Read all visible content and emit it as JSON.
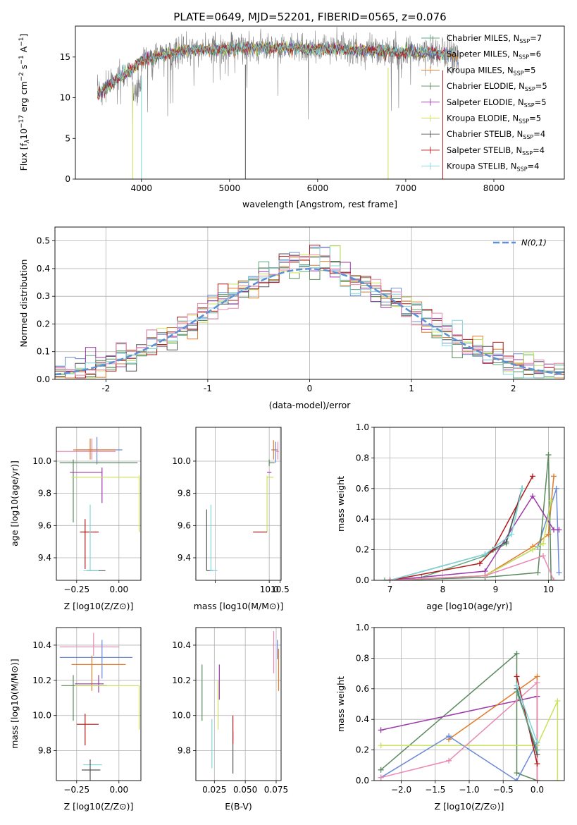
{
  "colors": {
    "Chabrier MILES": "#5fa87f",
    "Salpeter MILES": "#6b8ad6",
    "Kroupa MILES": "#e07b2a",
    "Chabrier ELODIE": "#5a8a5e",
    "Salpeter ELODIE": "#9c3aaa",
    "Kroupa ELODIE": "#c8e35a",
    "Chabrier STELIB": "#555555",
    "Salpeter STELIB": "#b01a1a",
    "Kroupa STELIB": "#7fd6dc",
    "pink": "#e889b4",
    "spectrum_gray": "#808080",
    "gauss": "#5b8fd6"
  },
  "chart_data": [
    {
      "id": "spectrum",
      "type": "line",
      "title": "PLATE=0649, MJD=52201, FIBERID=0565, z=0.076",
      "xlabel": "wavelength [Angstrom, rest frame]",
      "ylabel_parts": [
        "Flux [f",
        "λ",
        "10",
        "−17",
        " erg cm",
        "−2",
        " s",
        "−1",
        " A",
        "−1",
        "]"
      ],
      "xlim": [
        3250,
        8800
      ],
      "ylim": [
        0,
        18.8
      ],
      "xticks": [
        4000,
        5000,
        6000,
        7000,
        8000
      ],
      "yticks": [
        0,
        5,
        10,
        15
      ],
      "grid": false,
      "legend_position": "top-right",
      "legend": [
        {
          "name": "Chabrier MILES",
          "n": "7"
        },
        {
          "name": "Salpeter MILES",
          "n": "6"
        },
        {
          "name": "Kroupa MILES",
          "n": "5"
        },
        {
          "name": "Chabrier ELODIE",
          "n": "5"
        },
        {
          "name": "Salpeter ELODIE",
          "n": "5"
        },
        {
          "name": "Kroupa ELODIE",
          "n": "5"
        },
        {
          "name": "Chabrier STELIB",
          "n": "4"
        },
        {
          "name": "Salpeter STELIB",
          "n": "4"
        },
        {
          "name": "Kroupa STELIB",
          "n": "4"
        }
      ],
      "legend_sub": "SSP",
      "continuum": [
        [
          3500,
          10.5
        ],
        [
          3650,
          11.5
        ],
        [
          3750,
          12.5
        ],
        [
          3900,
          13.5
        ],
        [
          4000,
          14.5
        ],
        [
          4200,
          15.2
        ],
        [
          4500,
          15.8
        ],
        [
          5000,
          16.0
        ],
        [
          5500,
          16.2
        ],
        [
          6000,
          16.0
        ],
        [
          6500,
          15.8
        ],
        [
          7000,
          15.6
        ],
        [
          7400,
          15.4
        ],
        [
          7600,
          15.0
        ]
      ]
    },
    {
      "id": "residuals",
      "type": "bar",
      "xlabel": "(data-model)/error",
      "ylabel": "Normed distribution",
      "xlim": [
        -2.5,
        2.5
      ],
      "ylim": [
        0,
        0.55
      ],
      "xticks": [
        -2,
        -1,
        0,
        1,
        2
      ],
      "yticks": [
        0.0,
        0.1,
        0.2,
        0.3,
        0.4,
        0.5
      ],
      "grid": true,
      "legend_position": "top-right",
      "gauss_label": "N(0,1)",
      "bin_width": 0.1,
      "bin_start": -2.5
    },
    {
      "id": "age-vs-Z",
      "type": "scatter",
      "xlabel": "Z [log10(Z/Z⊙)]",
      "ylabel": "age  [log10(age/yr)]",
      "xlim": [
        -0.37,
        0.13
      ],
      "ylim": [
        9.26,
        10.21
      ],
      "xticks": [
        -0.25,
        0.0
      ],
      "xticklabels": [
        "−0.25",
        "0.00"
      ],
      "yticks": [
        9.4,
        9.6,
        9.8,
        10.0
      ],
      "grid": true,
      "points": [
        {
          "c": "Salpeter MILES",
          "x": -0.13,
          "y": 10.07,
          "xerr": [
            0.12,
            0.15
          ],
          "yerr": [
            0.09,
            0.08
          ]
        },
        {
          "c": "pink",
          "x": -0.16,
          "y": 10.06,
          "xerr": [
            0.21,
            0.14
          ],
          "yerr": [
            0.05,
            0.08
          ]
        },
        {
          "c": "Kroupa MILES",
          "x": -0.17,
          "y": 10.07,
          "xerr": [
            0.1,
            0.15
          ],
          "yerr": [
            0.06,
            0.07
          ]
        },
        {
          "c": "Chabrier ELODIE",
          "x": -0.27,
          "y": 9.99,
          "xerr": [
            0.08,
            0.38
          ],
          "yerr": [
            0.37,
            0.02
          ]
        },
        {
          "c": "Salpeter ELODIE",
          "x": -0.1,
          "y": 9.93,
          "xerr": [
            0.19,
            0.0
          ],
          "yerr": [
            0.19,
            0.03
          ]
        },
        {
          "c": "Kroupa ELODIE",
          "x": 0.12,
          "y": 9.9,
          "xerr": [
            0.4,
            0.0
          ],
          "yerr": [
            0.34,
            0.01
          ]
        },
        {
          "c": "Salpeter STELIB",
          "x": -0.2,
          "y": 9.56,
          "xerr": [
            0.03,
            0.08
          ],
          "yerr": [
            0.23,
            0.08
          ]
        },
        {
          "c": "Chabrier STELIB",
          "x": -0.15,
          "y": 9.32,
          "xerr": [
            0.04,
            0.07
          ],
          "yerr": [
            0.0,
            0.0
          ]
        },
        {
          "c": "Kroupa STELIB",
          "x": -0.17,
          "y": 9.32,
          "xerr": [
            0.04,
            0.05
          ],
          "yerr": [
            0.0,
            0.41
          ]
        }
      ]
    },
    {
      "id": "age-vs-mass",
      "type": "scatter",
      "xlabel": "mass [log10(M/M⊙)]",
      "xlim": [
        6.6,
        10.55
      ],
      "ylim": [
        9.26,
        10.21
      ],
      "xticks": [
        7.5,
        10.0,
        10.5
      ],
      "xticklabels": [
        "",
        "10.0",
        "10.5"
      ],
      "yticks": [
        9.4,
        9.6,
        9.8,
        10.0
      ],
      "grid": true,
      "points": [
        {
          "c": "Salpeter MILES",
          "x": 10.3,
          "y": 10.07,
          "xerr": [
            0.2,
            0.1
          ],
          "yerr": [
            0.08,
            0.05
          ]
        },
        {
          "c": "pink",
          "x": 10.4,
          "y": 10.06,
          "xerr": [
            0.1,
            0.05
          ],
          "yerr": [
            0.05,
            0.06
          ]
        },
        {
          "c": "Kroupa MILES",
          "x": 10.2,
          "y": 10.07,
          "xerr": [
            0.05,
            0.1
          ],
          "yerr": [
            0.06,
            0.06
          ]
        },
        {
          "c": "Chabrier ELODIE",
          "x": 10.0,
          "y": 9.99,
          "xerr": [
            0.0,
            0.25
          ],
          "yerr": [
            0.02,
            0.02
          ]
        },
        {
          "c": "Salpeter ELODIE",
          "x": 10.1,
          "y": 9.93,
          "xerr": [
            0.2,
            0.0
          ],
          "yerr": [
            0.0,
            0.0
          ]
        },
        {
          "c": "Kroupa ELODIE",
          "x": 9.9,
          "y": 9.9,
          "xerr": [
            0.0,
            0.3
          ],
          "yerr": [
            0.34,
            0.01
          ]
        },
        {
          "c": "Salpeter STELIB",
          "x": 9.6,
          "y": 9.56,
          "xerr": [
            0.35,
            0.3
          ],
          "yerr": [
            0.0,
            0.0
          ]
        },
        {
          "c": "Chabrier STELIB",
          "x": 7.1,
          "y": 9.32,
          "xerr": [
            0.0,
            0.3
          ],
          "yerr": [
            0.0,
            0.38
          ]
        },
        {
          "c": "Kroupa STELIB",
          "x": 7.3,
          "y": 9.32,
          "xerr": [
            0.05,
            0.3
          ],
          "yerr": [
            0.0,
            0.41
          ]
        }
      ]
    },
    {
      "id": "weight-vs-age",
      "type": "line",
      "xlabel": "age  [log10(age/yr)]",
      "ylabel": "mass weight",
      "xlim": [
        6.7,
        10.3
      ],
      "ylim": [
        0,
        1
      ],
      "xticks": [
        7,
        8,
        9,
        10
      ],
      "yticks": [
        0.0,
        0.2,
        0.4,
        0.6,
        0.8,
        1.0
      ],
      "grid": true,
      "series": [
        {
          "c": "Chabrier MILES",
          "x": [
            6.9,
            7.6,
            8.8,
            9.2,
            9.5
          ],
          "y": [
            0.0,
            0.02,
            0.16,
            0.24,
            0.6
          ]
        },
        {
          "c": "Salpeter MILES",
          "x": [
            7.0,
            8.8,
            9.8,
            10.15,
            10.2
          ],
          "y": [
            0.0,
            0.03,
            0.22,
            0.6,
            0.05
          ]
        },
        {
          "c": "Kroupa MILES",
          "x": [
            7.0,
            8.8,
            9.7,
            10.0,
            10.1
          ],
          "y": [
            0.0,
            0.03,
            0.22,
            0.3,
            0.68
          ]
        },
        {
          "c": "Chabrier ELODIE",
          "x": [
            7.0,
            8.8,
            9.8,
            10.0,
            10.05
          ],
          "y": [
            0.0,
            0.02,
            0.05,
            0.82,
            0.0
          ]
        },
        {
          "c": "Salpeter ELODIE",
          "x": [
            7.0,
            8.8,
            9.7,
            10.1,
            10.2
          ],
          "y": [
            0.0,
            0.06,
            0.55,
            0.33,
            0.33
          ]
        },
        {
          "c": "Kroupa ELODIE",
          "x": [
            7.0,
            8.8,
            9.7,
            9.9,
            10.05
          ],
          "y": [
            0.0,
            0.03,
            0.2,
            0.24,
            0.52
          ]
        },
        {
          "c": "Chabrier STELIB",
          "x": [
            7.0,
            8.8,
            9.2,
            9.5
          ],
          "y": [
            0.0,
            0.17,
            0.25,
            0.6
          ]
        },
        {
          "c": "Salpeter STELIB",
          "x": [
            7.0,
            8.7,
            8.95,
            9.7
          ],
          "y": [
            0.0,
            0.11,
            0.2,
            0.68
          ]
        },
        {
          "c": "Kroupa STELIB",
          "x": [
            7.0,
            8.8,
            9.3,
            9.5
          ],
          "y": [
            0.0,
            0.17,
            0.3,
            0.6
          ]
        },
        {
          "c": "pink",
          "x": [
            7.0,
            8.8,
            9.9,
            10.1
          ],
          "y": [
            0.0,
            0.03,
            0.16,
            0.0
          ]
        }
      ]
    },
    {
      "id": "mass-vs-Z",
      "type": "scatter",
      "xlabel": "Z [log10(Z/Z⊙)]",
      "ylabel": "mass [log10(M/M⊙)]",
      "xlim": [
        -0.37,
        0.13
      ],
      "ylim": [
        9.63,
        10.5
      ],
      "xticks": [
        -0.25,
        0.0
      ],
      "xticklabels": [
        "−0.25",
        "0.00"
      ],
      "yticks": [
        9.8,
        10.0,
        10.2,
        10.4
      ],
      "grid": true,
      "points": [
        {
          "c": "pink",
          "x": -0.15,
          "y": 10.39,
          "xerr": [
            0.2,
            0.15
          ],
          "yerr": [
            0.05,
            0.08
          ]
        },
        {
          "c": "Salpeter MILES",
          "x": -0.1,
          "y": 10.33,
          "xerr": [
            0.25,
            0.18
          ],
          "yerr": [
            0.12,
            0.1
          ]
        },
        {
          "c": "Kroupa MILES",
          "x": -0.16,
          "y": 10.29,
          "xerr": [
            0.12,
            0.2
          ],
          "yerr": [
            0.15,
            0.05
          ]
        },
        {
          "c": "Salpeter ELODIE",
          "x": -0.12,
          "y": 10.18,
          "xerr": [
            0.14,
            0.03
          ],
          "yerr": [
            0.05,
            0.05
          ]
        },
        {
          "c": "Chabrier ELODIE",
          "x": -0.27,
          "y": 10.17,
          "xerr": [
            0.07,
            0.2
          ],
          "yerr": [
            0.2,
            0.06
          ]
        },
        {
          "c": "Kroupa ELODIE",
          "x": 0.12,
          "y": 10.17,
          "xerr": [
            0.38,
            0.0
          ],
          "yerr": [
            0.25,
            0.0
          ]
        },
        {
          "c": "Salpeter STELIB",
          "x": -0.2,
          "y": 9.95,
          "xerr": [
            0.05,
            0.08
          ],
          "yerr": [
            0.12,
            0.06
          ]
        },
        {
          "c": "Kroupa STELIB",
          "x": -0.16,
          "y": 9.72,
          "xerr": [
            0.05,
            0.06
          ],
          "yerr": [
            0.0,
            0.0
          ]
        },
        {
          "c": "Chabrier STELIB",
          "x": -0.17,
          "y": 9.69,
          "xerr": [
            0.05,
            0.06
          ],
          "yerr": [
            0.06,
            0.06
          ]
        }
      ]
    },
    {
      "id": "mass-vs-EBV",
      "type": "scatter",
      "xlabel": "E(B-V)",
      "xlim": [
        0.01,
        0.079
      ],
      "ylim": [
        9.63,
        10.5
      ],
      "xticks": [
        0.025,
        0.05,
        0.075
      ],
      "xticklabels": [
        "0.025",
        "0.050",
        "0.075"
      ],
      "yticks": [
        9.8,
        10.0,
        10.2,
        10.4
      ],
      "grid": true,
      "points": [
        {
          "c": "Chabrier ELODIE",
          "x": 0.015,
          "y": 10.13,
          "xerr": [
            0,
            0
          ],
          "yerr": [
            0.16,
            0.16
          ]
        },
        {
          "c": "Kroupa STELIB",
          "x": 0.023,
          "y": 9.84,
          "xerr": [
            0,
            0
          ],
          "yerr": [
            0.14,
            0.14
          ]
        },
        {
          "c": "Kroupa ELODIE",
          "x": 0.028,
          "y": 10.09,
          "xerr": [
            0,
            0
          ],
          "yerr": [
            0.17,
            0.11
          ]
        },
        {
          "c": "Salpeter ELODIE",
          "x": 0.029,
          "y": 10.19,
          "xerr": [
            0,
            0
          ],
          "yerr": [
            0.1,
            0.1
          ]
        },
        {
          "c": "Chabrier STELIB",
          "x": 0.04,
          "y": 9.79,
          "xerr": [
            0,
            0
          ],
          "yerr": [
            0.12,
            0.12
          ]
        },
        {
          "c": "Salpeter STELIB",
          "x": 0.04,
          "y": 9.92,
          "xerr": [
            0,
            0
          ],
          "yerr": [
            0.08,
            0.08
          ]
        },
        {
          "c": "pink",
          "x": 0.073,
          "y": 10.36,
          "xerr": [
            0,
            0
          ],
          "yerr": [
            0.12,
            0.12
          ]
        },
        {
          "c": "Kroupa MILES",
          "x": 0.077,
          "y": 10.28,
          "xerr": [
            0,
            0
          ],
          "yerr": [
            0.14,
            0.1
          ]
        },
        {
          "c": "Salpeter MILES",
          "x": 0.076,
          "y": 10.38,
          "xerr": [
            0,
            0
          ],
          "yerr": [
            0.06,
            0.05
          ]
        }
      ]
    },
    {
      "id": "weight-vs-Z",
      "type": "line",
      "xlabel": "Z [log10(Z/Z⊙)]",
      "ylabel": "mass weight",
      "xlim": [
        -2.4,
        0.4
      ],
      "ylim": [
        0,
        1
      ],
      "xticks": [
        -2.0,
        -1.5,
        -1.0,
        -0.5,
        0.0
      ],
      "xticklabels": [
        "−2.0",
        "−1.5",
        "−1.0",
        "−0.5",
        "0.0"
      ],
      "yticks": [
        0.0,
        0.2,
        0.4,
        0.6,
        0.8,
        1.0
      ],
      "grid": true,
      "series": [
        {
          "c": "Chabrier ELODIE",
          "x": [
            -2.3,
            -0.3,
            -0.3,
            0.0
          ],
          "y": [
            0.07,
            0.83,
            0.05,
            0.0
          ]
        },
        {
          "c": "Salpeter ELODIE",
          "x": [
            -2.3,
            0.0,
            0.0
          ],
          "y": [
            0.33,
            0.55,
            0.0
          ]
        },
        {
          "c": "Kroupa ELODIE",
          "x": [
            -2.3,
            0.0,
            0.3,
            0.3
          ],
          "y": [
            0.23,
            0.23,
            0.52,
            0.0
          ]
        },
        {
          "c": "Kroupa MILES",
          "x": [
            -1.3,
            0.0,
            0.0
          ],
          "y": [
            0.27,
            0.68,
            0.0
          ]
        },
        {
          "c": "Salpeter MILES",
          "x": [
            -2.3,
            -1.3,
            -0.3,
            0.0
          ],
          "y": [
            0.02,
            0.29,
            0.0,
            0.25
          ]
        },
        {
          "c": "pink",
          "x": [
            -2.3,
            -1.3,
            0.0,
            0.0
          ],
          "y": [
            0.02,
            0.13,
            0.64,
            0.0
          ]
        },
        {
          "c": "Salpeter STELIB",
          "x": [
            -0.3,
            0.0
          ],
          "y": [
            0.68,
            0.11
          ]
        },
        {
          "c": "Chabrier STELIB",
          "x": [
            -0.3,
            0.0
          ],
          "y": [
            0.6,
            0.17
          ]
        },
        {
          "c": "Kroupa STELIB",
          "x": [
            -0.3,
            0.0
          ],
          "y": [
            0.62,
            0.25
          ]
        },
        {
          "c": "Chabrier MILES",
          "x": [
            -0.3,
            0.0
          ],
          "y": [
            0.58,
            0.2
          ]
        }
      ]
    }
  ]
}
